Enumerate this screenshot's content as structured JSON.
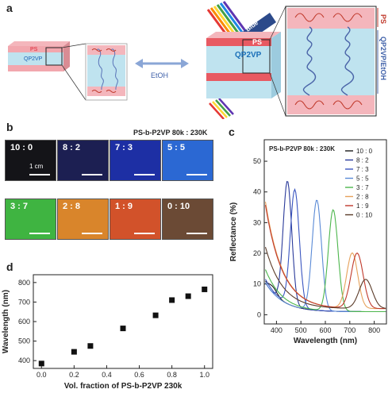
{
  "panels": {
    "a": "a",
    "b": "b",
    "c": "c",
    "d": "d"
  },
  "schematic": {
    "left_ps": "PS",
    "left_qp2vp": "QP2VP",
    "solvent": "EtOH",
    "blue_light": "Blue",
    "right_ps": "PS",
    "right_qp2vp": "QP2VP",
    "zoom_ps": "PS",
    "zoom_qp2vp": "QP2VP/EtOH"
  },
  "photos": {
    "header": "PS-b-P2VP 80k : 230K",
    "scale": "1 cm",
    "tiles": [
      {
        "label": "10 : 0",
        "color": "#141418"
      },
      {
        "label": "8 : 2",
        "color": "#1c1f52"
      },
      {
        "label": "7 : 3",
        "color": "#1d2fa4"
      },
      {
        "label": "5 : 5",
        "color": "#2b68d3"
      },
      {
        "label": "3 : 7",
        "color": "#3fb441"
      },
      {
        "label": "2 : 8",
        "color": "#d9852b"
      },
      {
        "label": "1 : 9",
        "color": "#d2522a"
      },
      {
        "label": "0 : 10",
        "color": "#6b4a35"
      }
    ]
  },
  "chart_data": [
    {
      "id": "c",
      "type": "line",
      "title": "PS-b-P2VP 80k : 230K",
      "xlabel": "Wavelength (nm)",
      "ylabel": "Reflectance (%)",
      "xlim": [
        350,
        850
      ],
      "ylim": [
        -3,
        57
      ],
      "xticks": [
        400,
        500,
        600,
        700,
        800
      ],
      "yticks": [
        0,
        10,
        20,
        30,
        40,
        50
      ],
      "series": [
        {
          "name": "10 : 0",
          "color": "#1a1a1a",
          "peak_x": 385,
          "peak_y": 2,
          "width": 25,
          "base_start": 9,
          "base_end": 1
        },
        {
          "name": "8 : 2",
          "color": "#2a3a9a",
          "peak_x": 445,
          "peak_y": 40,
          "width": 25,
          "base_start": 9,
          "base_end": 1
        },
        {
          "name": "7 : 3",
          "color": "#3a55c0",
          "peak_x": 475,
          "peak_y": 38,
          "width": 26,
          "base_start": 10,
          "base_end": 1
        },
        {
          "name": "5 : 5",
          "color": "#5a8ad6",
          "peak_x": 565,
          "peak_y": 36,
          "width": 27,
          "base_start": 9,
          "base_end": 1
        },
        {
          "name": "3 : 7",
          "color": "#4cb64c",
          "peak_x": 632,
          "peak_y": 33,
          "width": 28,
          "base_start": 13,
          "base_end": 1
        },
        {
          "name": "2 : 8",
          "color": "#e6a25b",
          "peak_x": 710,
          "peak_y": 18,
          "width": 32,
          "base_start": 33,
          "base_end": 2
        },
        {
          "name": "1 : 9",
          "color": "#c0392b",
          "peak_x": 730,
          "peak_y": 18,
          "width": 35,
          "base_start": 32,
          "base_end": 2
        },
        {
          "name": "0 : 10",
          "color": "#5a3a28",
          "peak_x": 765,
          "peak_y": 9.5,
          "width": 38,
          "base_start": 19,
          "base_end": 2
        }
      ]
    },
    {
      "id": "d",
      "type": "scatter",
      "xlabel": "Vol. fraction of PS-b-P2VP 230k",
      "ylabel": "Wavelength (nm)",
      "xlim": [
        -0.05,
        1.05
      ],
      "ylim": [
        360,
        840
      ],
      "xticks": [
        0.0,
        0.2,
        0.4,
        0.6,
        0.8,
        1.0
      ],
      "yticks": [
        400,
        500,
        600,
        700,
        800
      ],
      "x": [
        0.0,
        0.2,
        0.3,
        0.5,
        0.7,
        0.8,
        0.9,
        1.0
      ],
      "y": [
        385,
        445,
        475,
        565,
        632,
        710,
        730,
        765
      ]
    }
  ]
}
